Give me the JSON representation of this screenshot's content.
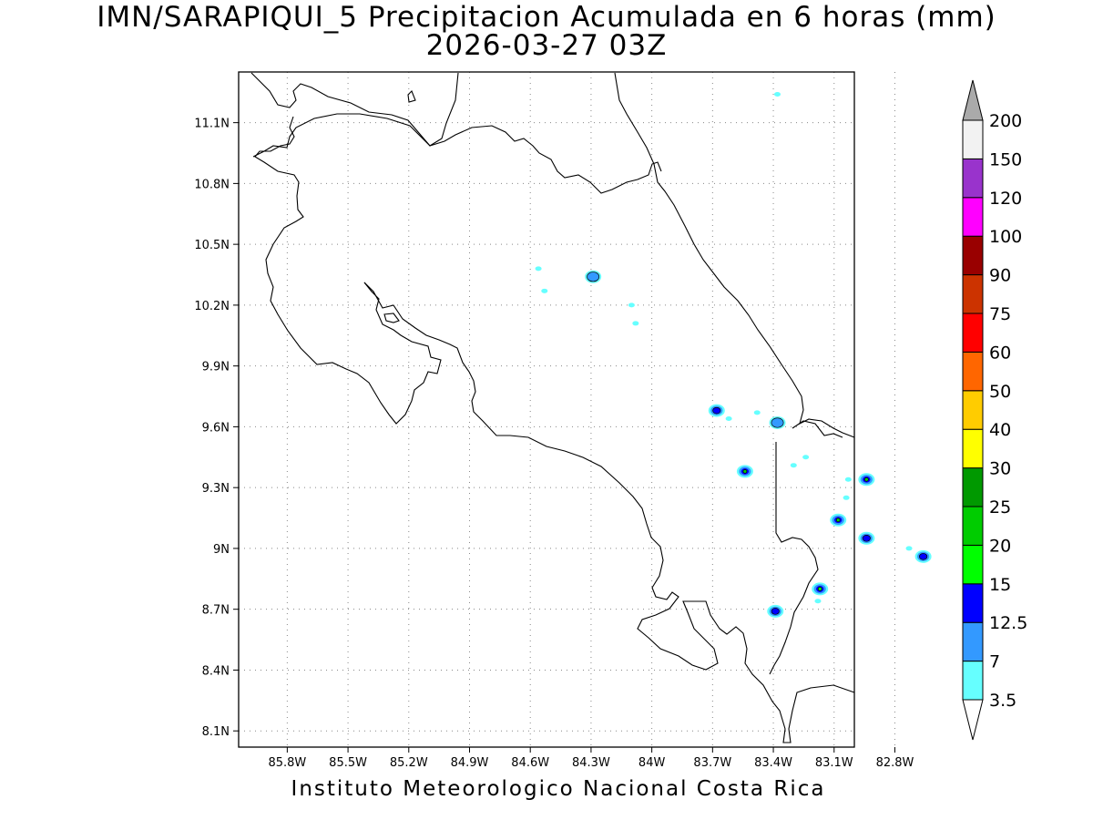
{
  "title": "IMN/SARAPIQUI_5 Precipitacion Acumulada en 6 horas (mm)",
  "subtitle": "2026-03-27 03Z",
  "footer": "Instituto Meteorologico Nacional Costa Rica",
  "map": {
    "lon_range": [
      -86.04,
      -83.0
    ],
    "lat_range": [
      8.02,
      11.35
    ],
    "x_ticks": [
      "85.8W",
      "85.5W",
      "85.2W",
      "84.9W",
      "84.6W",
      "84.3W",
      "84W",
      "83.7W",
      "83.4W",
      "83.1W",
      "82.8W"
    ],
    "y_ticks": [
      "11.1N",
      "10.8N",
      "10.5N",
      "10.2N",
      "9.9N",
      "9.6N",
      "9.3N",
      "9N",
      "8.7N",
      "8.4N",
      "8.1N"
    ],
    "grid": true
  },
  "colorbar": {
    "levels": [
      "3.5",
      "7",
      "12.5",
      "15",
      "20",
      "25",
      "30",
      "40",
      "50",
      "60",
      "75",
      "90",
      "100",
      "120",
      "150",
      "200"
    ],
    "colors": [
      "#66ffff",
      "#3399ff",
      "#0000ff",
      "#00ff00",
      "#00cc00",
      "#009900",
      "#ffff00",
      "#ffcc00",
      "#ff6600",
      "#ff0000",
      "#cc3300",
      "#990000",
      "#ff00ff",
      "#9933cc",
      "#f2f2f2",
      "#aaaaaa"
    ]
  },
  "precip_cells": [
    {
      "lon": -84.29,
      "lat": 10.34,
      "max_class": 1
    },
    {
      "lon": -83.68,
      "lat": 9.68,
      "max_class": 2
    },
    {
      "lon": -83.38,
      "lat": 9.62,
      "max_class": 1
    },
    {
      "lon": -83.54,
      "lat": 9.38,
      "max_class": 4
    },
    {
      "lon": -82.94,
      "lat": 9.34,
      "max_class": 4
    },
    {
      "lon": -83.08,
      "lat": 9.14,
      "max_class": 4
    },
    {
      "lon": -82.94,
      "lat": 9.05,
      "max_class": 2
    },
    {
      "lon": -83.17,
      "lat": 8.8,
      "max_class": 3
    },
    {
      "lon": -83.39,
      "lat": 8.69,
      "max_class": 2
    },
    {
      "lon": -82.66,
      "lat": 8.96,
      "max_class": 2
    }
  ]
}
